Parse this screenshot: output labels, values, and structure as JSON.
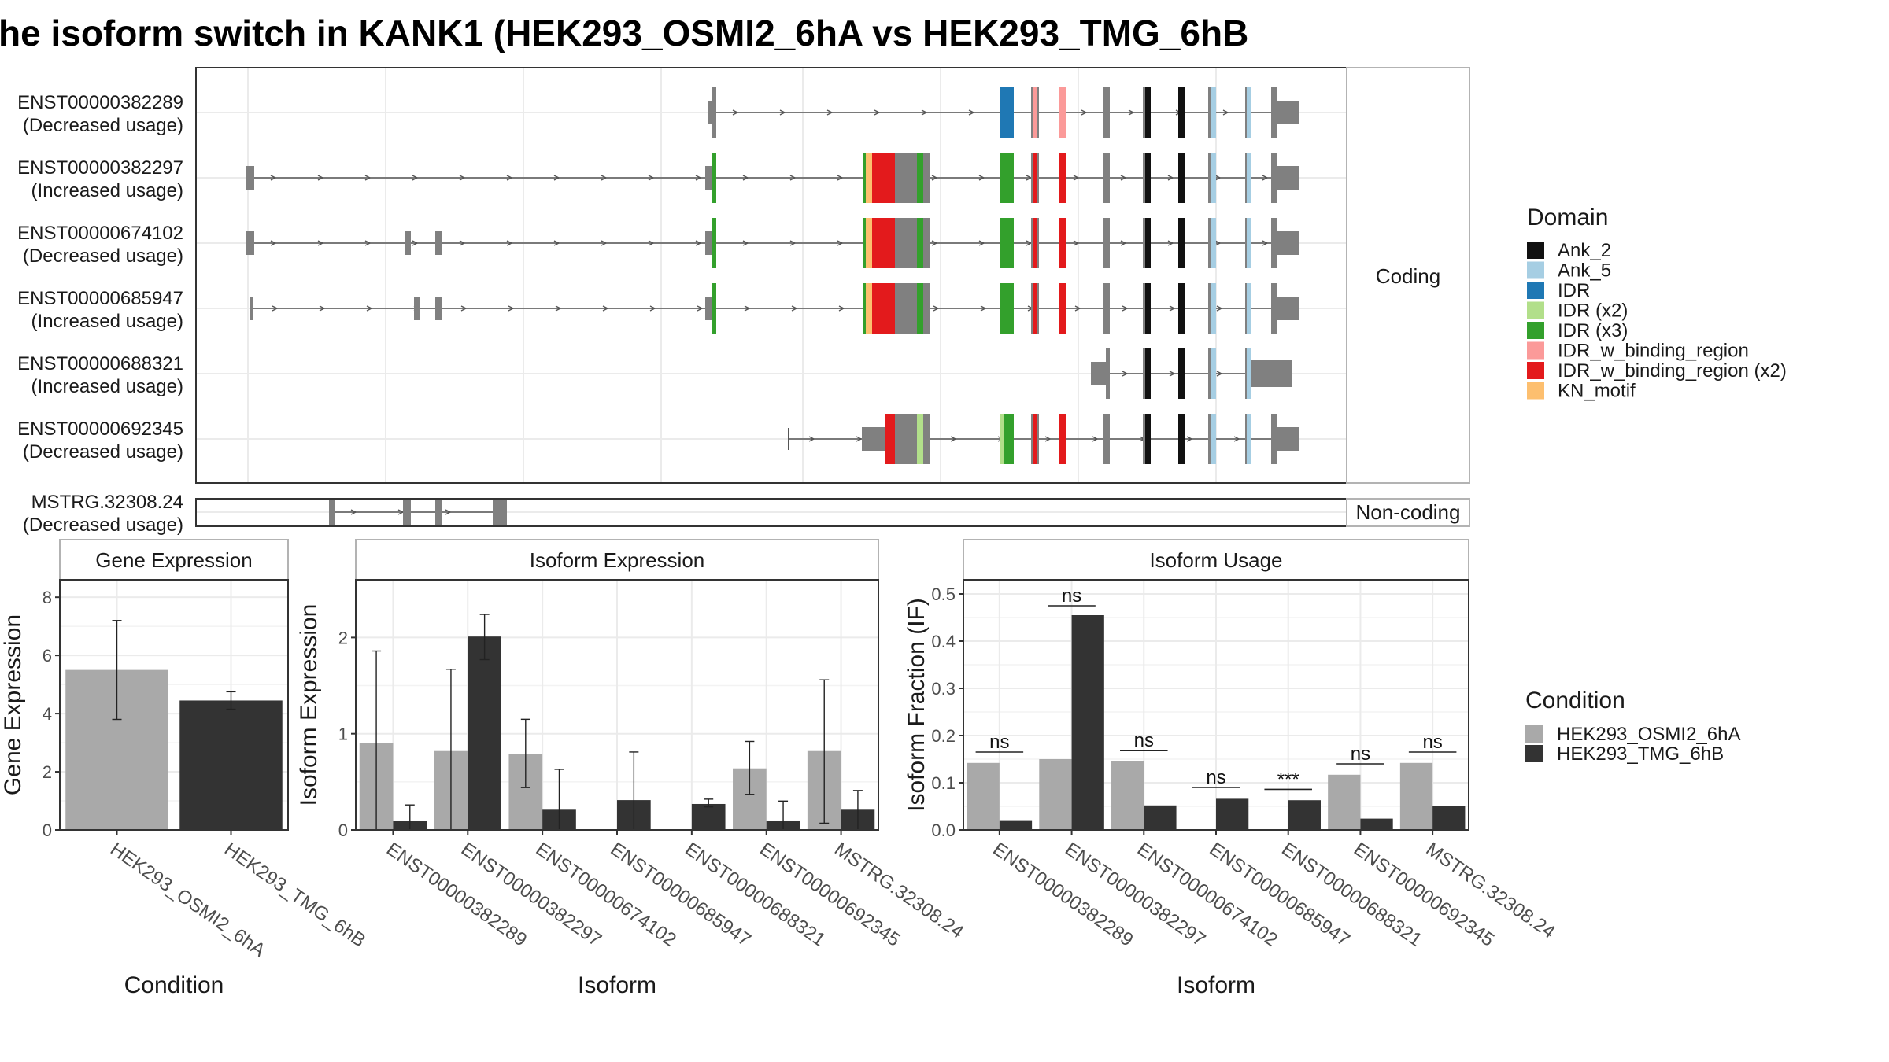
{
  "title": "he isoform switch in KANK1 (HEK293_OSMI2_6hA vs HEK293_TMG_6hB",
  "colors": {
    "Ank_2": "#111111",
    "Ank_5": "#a6cee3",
    "IDR": "#1f78b4",
    "IDR (x2)": "#b2df8a",
    "IDR (x3)": "#33a02c",
    "IDR_w_binding_region": "#fb9a99",
    "IDR_w_binding_region (x2)": "#e31a1c",
    "KN_motif": "#fdbf6f",
    "exon": "#808080",
    "cond_a": "#a9a9a9",
    "cond_b": "#333333",
    "panel_border": "#333333",
    "strip_border": "#b3b3b3",
    "grid": "#ebebeb"
  },
  "gene_model": {
    "facets": {
      "coding": "Coding",
      "noncoding": "Non-coding"
    },
    "transcripts": [
      {
        "id": "ENST00000382289",
        "usage": "(Decreased usage)",
        "group": "coding"
      },
      {
        "id": "ENST00000382297",
        "usage": "(Increased usage)",
        "group": "coding"
      },
      {
        "id": "ENST00000674102",
        "usage": "(Decreased usage)",
        "group": "coding"
      },
      {
        "id": "ENST00000685947",
        "usage": "(Increased usage)",
        "group": "coding"
      },
      {
        "id": "ENST00000688321",
        "usage": "(Increased usage)",
        "group": "coding"
      },
      {
        "id": "ENST00000692345",
        "usage": "(Decreased usage)",
        "group": "coding"
      },
      {
        "id": "MSTRG.32308.24",
        "usage": "(Decreased usage)",
        "group": "noncoding"
      }
    ]
  },
  "domain_legend": {
    "title": "Domain",
    "items": [
      "Ank_2",
      "Ank_5",
      "IDR",
      "IDR (x2)",
      "IDR (x3)",
      "IDR_w_binding_region",
      "IDR_w_binding_region (x2)",
      "KN_motif"
    ]
  },
  "condition_legend": {
    "title": "Condition",
    "items": [
      "HEK293_OSMI2_6hA",
      "HEK293_TMG_6hB"
    ]
  },
  "chart_data": [
    {
      "type": "bar",
      "title": "Gene Expression",
      "xlabel": "Condition",
      "ylabel": "Gene Expression",
      "categories": [
        "HEK293_OSMI2_6hA",
        "HEK293_TMG_6hB"
      ],
      "values": [
        5.5,
        4.45
      ],
      "error_low": [
        3.8,
        4.15
      ],
      "error_high": [
        7.2,
        4.75
      ],
      "ylim": [
        0,
        8.6
      ],
      "yticks": [
        0,
        2,
        4,
        6,
        8
      ],
      "yticklabels": [
        "0",
        "2",
        "4",
        "6",
        "8"
      ]
    },
    {
      "type": "bar",
      "title": "Isoform Expression",
      "xlabel": "Isoform",
      "ylabel": "Isoform Expression",
      "categories": [
        "ENST00000382289",
        "ENST00000382297",
        "ENST00000674102",
        "ENST00000685947",
        "ENST00000688321",
        "ENST00000692345",
        "MSTRG.32308.24"
      ],
      "series": [
        {
          "name": "HEK293_OSMI2_6hA",
          "values": [
            0.9,
            0.82,
            0.79,
            0.0,
            0.0,
            0.64,
            0.82
          ],
          "error_low": [
            0.0,
            0.0,
            0.44,
            null,
            null,
            0.37,
            0.07
          ],
          "error_high": [
            1.86,
            1.67,
            1.15,
            null,
            null,
            0.92,
            1.56
          ]
        },
        {
          "name": "HEK293_TMG_6hB",
          "values": [
            0.09,
            2.01,
            0.21,
            0.31,
            0.27,
            0.09,
            0.21
          ],
          "error_low": [
            0.0,
            1.77,
            0.0,
            0.0,
            0.24,
            0.0,
            0.0
          ],
          "error_high": [
            0.26,
            2.24,
            0.63,
            0.81,
            0.32,
            0.3,
            0.41
          ]
        }
      ],
      "ylim": [
        0,
        2.6
      ],
      "yticks": [
        0,
        1,
        2
      ],
      "yticklabels": [
        "0",
        "1",
        "2"
      ]
    },
    {
      "type": "bar",
      "title": "Isoform Usage",
      "xlabel": "Isoform",
      "ylabel": "Isoform Fraction (IF)",
      "categories": [
        "ENST00000382289",
        "ENST00000382297",
        "ENST00000674102",
        "ENST00000685947",
        "ENST00000688321",
        "ENST00000692345",
        "MSTRG.32308.24"
      ],
      "series": [
        {
          "name": "HEK293_OSMI2_6hA",
          "values": [
            0.142,
            0.15,
            0.145,
            0.0,
            0.0,
            0.117,
            0.142
          ]
        },
        {
          "name": "HEK293_TMG_6hB",
          "values": [
            0.019,
            0.455,
            0.052,
            0.066,
            0.063,
            0.024,
            0.05
          ]
        }
      ],
      "significance": [
        "ns",
        "ns",
        "ns",
        "ns",
        "***",
        "ns",
        "ns"
      ],
      "sig_height": [
        0.165,
        0.475,
        0.168,
        0.09,
        0.086,
        0.14,
        0.165
      ],
      "ylim": [
        0,
        0.53
      ],
      "yticks": [
        0,
        0.1,
        0.2,
        0.3,
        0.4,
        0.5
      ],
      "yticklabels": [
        "0.0",
        "0.1",
        "0.2",
        "0.3",
        "0.4",
        "0.5"
      ]
    }
  ]
}
